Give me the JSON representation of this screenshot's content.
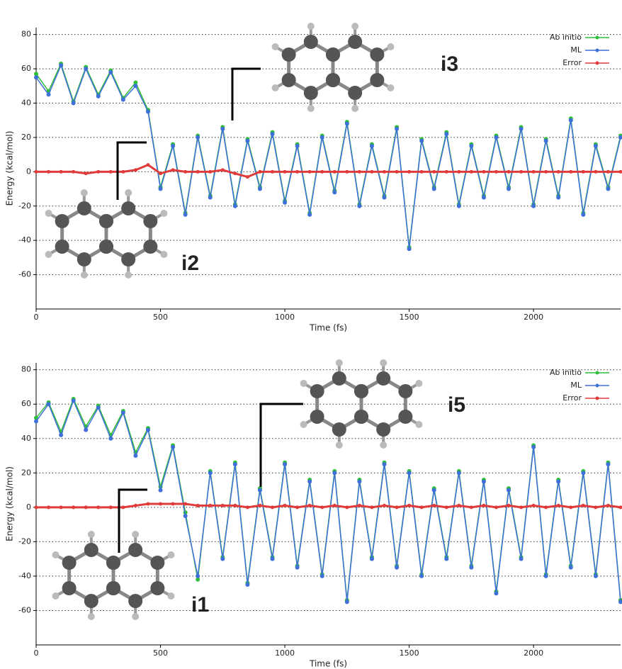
{
  "chart_data": [
    {
      "type": "line",
      "x_label": "Time (fs)",
      "y_label": "Energy (kcal/mol)",
      "x": [
        0,
        50,
        100,
        150,
        200,
        250,
        300,
        350,
        400,
        450,
        500,
        550,
        600,
        650,
        700,
        750,
        800,
        850,
        900,
        950,
        1000,
        1050,
        1100,
        1150,
        1200,
        1250,
        1300,
        1350,
        1400,
        1450,
        1500,
        1550,
        1600,
        1650,
        1700,
        1750,
        1800,
        1850,
        1900,
        1950,
        2000,
        2050,
        2100,
        2150,
        2200,
        2250,
        2300,
        2350
      ],
      "xlim": [
        0,
        2350
      ],
      "xticks": [
        0,
        500,
        1000,
        1500,
        2000
      ],
      "ylim": [
        -80,
        84
      ],
      "yticks": [
        -60,
        -40,
        -20,
        0,
        20,
        40,
        60,
        80
      ],
      "grid": true,
      "legend": "top-right",
      "series": [
        {
          "name": "Ab initio",
          "color": "#2fbf3a",
          "values": [
            57,
            47,
            63,
            41,
            61,
            45,
            59,
            43,
            52,
            36,
            -9,
            16,
            -24,
            21,
            -14,
            26,
            -19,
            19,
            -9,
            23,
            -17,
            16,
            -24,
            21,
            -11,
            29,
            -19,
            16,
            -14,
            26,
            -44,
            19,
            -9,
            23,
            -19,
            16,
            -14,
            21,
            -9,
            26,
            -19,
            19,
            -14,
            31,
            -24,
            16,
            -9,
            21
          ]
        },
        {
          "name": "ML",
          "color": "#3f6fd9",
          "values": [
            55,
            45,
            62,
            40,
            60,
            44,
            58,
            42,
            50,
            35,
            -10,
            15,
            -25,
            20,
            -15,
            25,
            -20,
            18,
            -10,
            22,
            -18,
            15,
            -25,
            20,
            -12,
            28,
            -20,
            15,
            -15,
            25,
            -45,
            18,
            -10,
            22,
            -20,
            15,
            -15,
            20,
            -10,
            25,
            -20,
            18,
            -15,
            30,
            -25,
            15,
            -10,
            20
          ]
        },
        {
          "name": "Error",
          "color": "#e03a3a",
          "values": [
            0,
            0,
            0,
            0,
            -1,
            0,
            0,
            0,
            1,
            4,
            -1,
            1,
            0,
            0,
            0,
            1,
            -1,
            -3,
            0,
            0,
            0,
            0,
            0,
            0,
            0,
            0,
            0,
            0,
            0,
            0,
            0,
            0,
            0,
            0,
            0,
            0,
            0,
            0,
            0,
            0,
            0,
            0,
            0,
            0,
            0,
            0,
            0,
            0
          ]
        }
      ],
      "annotations": [
        "i3",
        "i2"
      ]
    },
    {
      "type": "line",
      "x_label": "Time (fs)",
      "y_label": "Energy (kcal/mol)",
      "x": [
        0,
        50,
        100,
        150,
        200,
        250,
        300,
        350,
        400,
        450,
        500,
        550,
        600,
        650,
        700,
        750,
        800,
        850,
        900,
        950,
        1000,
        1050,
        1100,
        1150,
        1200,
        1250,
        1300,
        1350,
        1400,
        1450,
        1500,
        1550,
        1600,
        1650,
        1700,
        1750,
        1800,
        1850,
        1900,
        1950,
        2000,
        2050,
        2100,
        2150,
        2200,
        2250,
        2300,
        2350
      ],
      "xlim": [
        0,
        2350
      ],
      "xticks": [
        0,
        500,
        1000,
        1500,
        2000
      ],
      "ylim": [
        -80,
        84
      ],
      "yticks": [
        -60,
        -40,
        -20,
        0,
        20,
        40,
        60,
        80
      ],
      "grid": true,
      "legend": "top-right",
      "series": [
        {
          "name": "Ab initio",
          "color": "#2fbf3a",
          "values": [
            52,
            61,
            44,
            63,
            47,
            59,
            42,
            56,
            32,
            46,
            12,
            36,
            -3,
            -42,
            21,
            -29,
            26,
            -44,
            11,
            -29,
            26,
            -34,
            16,
            -39,
            21,
            -54,
            16,
            -29,
            26,
            -34,
            21,
            -39,
            11,
            -29,
            21,
            -34,
            16,
            -49,
            11,
            -29,
            36,
            -39,
            16,
            -34,
            21,
            -39,
            26,
            -54
          ]
        },
        {
          "name": "ML",
          "color": "#3f6fd9",
          "values": [
            50,
            60,
            42,
            62,
            45,
            58,
            40,
            55,
            30,
            45,
            10,
            35,
            -5,
            -40,
            20,
            -30,
            25,
            -45,
            10,
            -30,
            25,
            -35,
            15,
            -40,
            20,
            -55,
            15,
            -30,
            25,
            -35,
            20,
            -40,
            10,
            -30,
            20,
            -35,
            15,
            -50,
            10,
            -30,
            35,
            -40,
            15,
            -35,
            20,
            -40,
            25,
            -55
          ]
        },
        {
          "name": "Error",
          "color": "#e03a3a",
          "values": [
            0,
            0,
            0,
            0,
            0,
            0,
            0,
            0,
            1,
            2,
            2,
            2,
            2,
            1,
            1,
            1,
            1,
            0,
            1,
            0,
            1,
            0,
            1,
            0,
            1,
            0,
            1,
            0,
            1,
            0,
            1,
            0,
            1,
            0,
            1,
            0,
            1,
            0,
            1,
            0,
            1,
            0,
            1,
            0,
            1,
            0,
            1,
            0
          ]
        }
      ],
      "annotations": [
        "i5",
        "i1"
      ]
    }
  ]
}
